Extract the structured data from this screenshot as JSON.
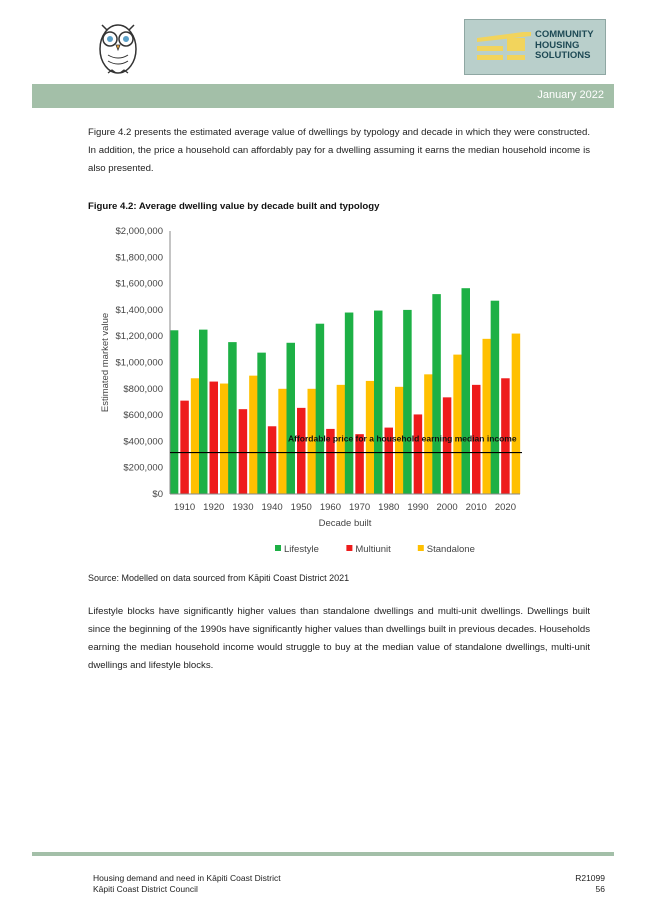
{
  "header": {
    "date": "January 2022",
    "logo_lines": [
      "COMMUNITY",
      "HOUSING",
      "SOLUTIONS"
    ]
  },
  "intro_paragraph": "Figure 4.2 presents the estimated average value of dwellings by typology and decade in which they were constructed.  In addition, the price a household can affordably pay for a dwelling assuming it earns the median household income is also presented.",
  "figure_title": "Figure 4.2:  Average dwelling value by decade built and typology",
  "chart_data": {
    "type": "bar",
    "categories": [
      "1910",
      "1920",
      "1930",
      "1940",
      "1950",
      "1960",
      "1970",
      "1980",
      "1990",
      "2000",
      "2010",
      "2020"
    ],
    "series": [
      {
        "name": "Lifestyle",
        "color": "#1db045",
        "values": [
          1245000,
          1250000,
          1155000,
          1075000,
          1150000,
          1295000,
          1380000,
          1395000,
          1400000,
          1520000,
          1565000,
          1470000
        ]
      },
      {
        "name": "Multiunit",
        "color": "#ee1c1c",
        "values": [
          710000,
          855000,
          645000,
          515000,
          655000,
          495000,
          455000,
          505000,
          605000,
          735000,
          830000,
          880000
        ]
      },
      {
        "name": "Standalone",
        "color": "#ffc000",
        "values": [
          880000,
          840000,
          900000,
          800000,
          800000,
          830000,
          860000,
          815000,
          910000,
          1060000,
          1180000,
          1220000
        ]
      }
    ],
    "y_ticks": [
      "$0",
      "$200,000",
      "$400,000",
      "$600,000",
      "$800,000",
      "$1,000,000",
      "$1,200,000",
      "$1,400,000",
      "$1,600,000",
      "$1,800,000",
      "$2,000,000"
    ],
    "ylim": [
      0,
      2000000
    ],
    "xlabel": "Decade built",
    "ylabel": "Estimated market value",
    "reference_line": {
      "value": 315000,
      "label": "Affordable price for a household earning median income"
    },
    "legend_position": "bottom",
    "grid": false
  },
  "source": "Source:  Modelled on data sourced from Kāpiti Coast District 2021",
  "body_paragraph": "Lifestyle blocks have significantly higher values than standalone dwellings and multi-unit dwellings.   Dwellings built since the beginning of the 1990s have significantly higher values than dwellings built in previous decades.  Households earning the median household income would struggle to buy at the median value of standalone dwellings, multi-unit dwellings and lifestyle blocks.",
  "footer": {
    "title": "Housing demand and need in Kāpiti Coast District",
    "org": "Kāpiti Coast District Council",
    "ref": "R21099",
    "page": "56"
  }
}
